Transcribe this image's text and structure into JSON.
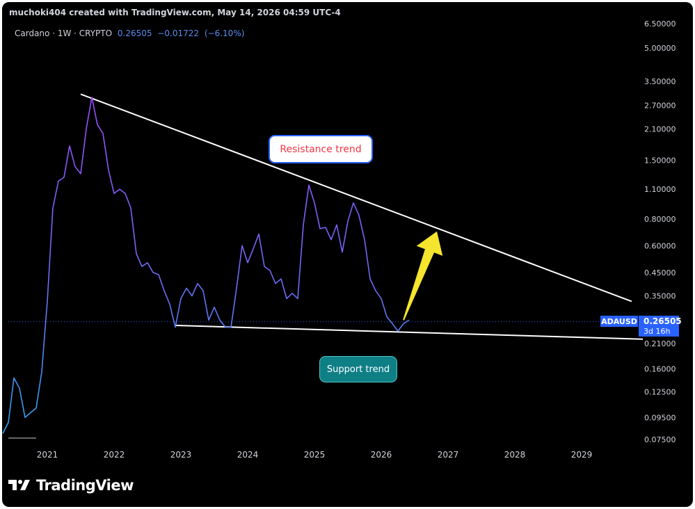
{
  "header": {
    "credit": "muchoki404 created with TradingView.com, May 14, 2026 04:59 UTC-4",
    "symbol_line": "Cardano · 1W · CRYPTO",
    "last_price": "0.26505",
    "change": "−0.01722",
    "change_pct": "(−6.10%)"
  },
  "price_tag": {
    "symbol": "ADAUSD",
    "price": "0.26505",
    "countdown": "3d 16h"
  },
  "annotations": {
    "resistance": "Resistance trend",
    "support": "Support trend"
  },
  "branding": {
    "logo_text": "TradingView",
    "logo_icon": "tradingview-logo-icon"
  },
  "colors": {
    "background": "#000000",
    "line_top": "#9b4dff",
    "line_bottom": "#2ea8f0",
    "trendline": "#ffffff",
    "arrow": "#f5e52c",
    "accent": "#2962ff"
  },
  "chart_data": {
    "type": "line",
    "scale": "log",
    "ylim": [
      0.07,
      6.8
    ],
    "y_ticks": [
      "6.50000",
      "5.00000",
      "3.50000",
      "2.70000",
      "2.10000",
      "1.50000",
      "1.10000",
      "0.80000",
      "0.60000",
      "0.45000",
      "0.35000",
      "0.26505",
      "0.21000",
      "0.16000",
      "0.12500",
      "0.09500",
      "0.07500"
    ],
    "x_ticks": [
      "2021",
      "2022",
      "2023",
      "2024",
      "2025",
      "2026",
      "2027",
      "2028",
      "2029"
    ],
    "series": [
      {
        "points": [
          [
            "2020-05",
            0.08
          ],
          [
            "2020-06",
            0.09
          ],
          [
            "2020-07",
            0.145
          ],
          [
            "2020-08",
            0.13
          ],
          [
            "2020-09",
            0.095
          ],
          [
            "2020-10",
            0.1
          ],
          [
            "2020-11",
            0.105
          ],
          [
            "2020-12",
            0.155
          ],
          [
            "2021-01",
            0.33
          ],
          [
            "2021-02",
            0.9
          ],
          [
            "2021-03",
            1.2
          ],
          [
            "2021-04",
            1.25
          ],
          [
            "2021-05",
            1.75
          ],
          [
            "2021-06",
            1.4
          ],
          [
            "2021-07",
            1.3
          ],
          [
            "2021-08",
            2.1
          ],
          [
            "2021-09",
            2.95
          ],
          [
            "2021-10",
            2.2
          ],
          [
            "2021-11",
            2.0
          ],
          [
            "2021-12",
            1.35
          ],
          [
            "2022-01",
            1.05
          ],
          [
            "2022-02",
            1.1
          ],
          [
            "2022-03",
            1.05
          ],
          [
            "2022-04",
            0.9
          ],
          [
            "2022-05",
            0.55
          ],
          [
            "2022-06",
            0.48
          ],
          [
            "2022-07",
            0.5
          ],
          [
            "2022-08",
            0.45
          ],
          [
            "2022-09",
            0.44
          ],
          [
            "2022-10",
            0.37
          ],
          [
            "2022-11",
            0.32
          ],
          [
            "2022-12",
            0.25
          ],
          [
            "2023-01",
            0.34
          ],
          [
            "2023-02",
            0.38
          ],
          [
            "2023-03",
            0.35
          ],
          [
            "2023-04",
            0.4
          ],
          [
            "2023-05",
            0.37
          ],
          [
            "2023-06",
            0.27
          ],
          [
            "2023-07",
            0.31
          ],
          [
            "2023-08",
            0.27
          ],
          [
            "2023-09",
            0.25
          ],
          [
            "2023-10",
            0.25
          ],
          [
            "2023-11",
            0.38
          ],
          [
            "2023-12",
            0.6
          ],
          [
            "2024-01",
            0.5
          ],
          [
            "2024-02",
            0.58
          ],
          [
            "2024-03",
            0.68
          ],
          [
            "2024-04",
            0.48
          ],
          [
            "2024-05",
            0.46
          ],
          [
            "2024-06",
            0.4
          ],
          [
            "2024-07",
            0.42
          ],
          [
            "2024-08",
            0.34
          ],
          [
            "2024-09",
            0.36
          ],
          [
            "2024-10",
            0.34
          ],
          [
            "2024-11",
            0.75
          ],
          [
            "2024-12",
            1.15
          ],
          [
            "2025-01",
            0.95
          ],
          [
            "2025-02",
            0.72
          ],
          [
            "2025-03",
            0.73
          ],
          [
            "2025-04",
            0.64
          ],
          [
            "2025-05",
            0.75
          ],
          [
            "2025-06",
            0.56
          ],
          [
            "2025-07",
            0.78
          ],
          [
            "2025-08",
            0.95
          ],
          [
            "2025-09",
            0.83
          ],
          [
            "2025-10",
            0.64
          ],
          [
            "2025-11",
            0.42
          ],
          [
            "2025-12",
            0.37
          ],
          [
            "2026-01",
            0.34
          ],
          [
            "2026-02",
            0.28
          ],
          [
            "2026-03",
            0.26
          ],
          [
            "2026-04",
            0.24
          ],
          [
            "2026-05",
            0.26
          ],
          [
            "2026-06",
            0.27
          ]
        ]
      }
    ],
    "trendlines": [
      {
        "label": "Resistance trend",
        "points": [
          [
            "2021-07",
            3.05
          ],
          [
            "2029-10",
            0.33
          ]
        ]
      },
      {
        "label": "Support trend",
        "points": [
          [
            "2022-12",
            0.255
          ],
          [
            "2029-12",
            0.22
          ]
        ]
      }
    ],
    "arrow": {
      "from": [
        "2026-05",
        0.27
      ],
      "to": [
        "2026-11",
        0.7
      ]
    }
  }
}
